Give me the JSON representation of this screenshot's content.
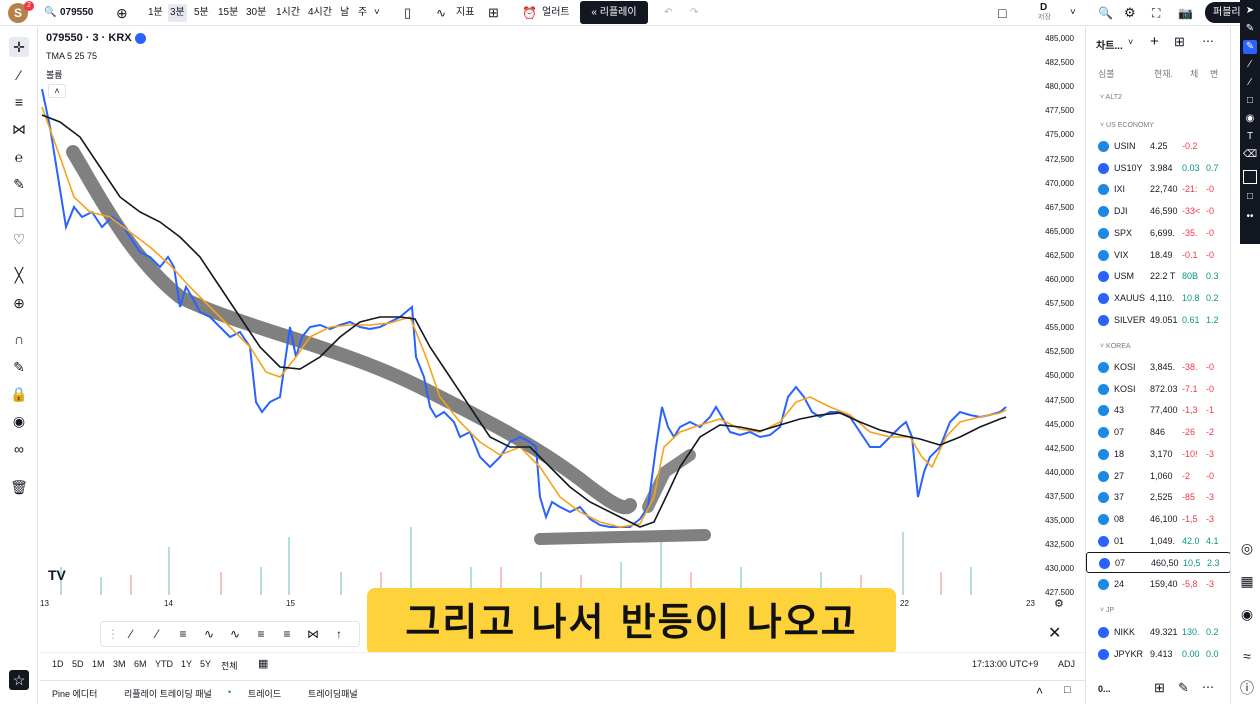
{
  "topbar": {
    "avatar_letter": "S",
    "notif_count": "2",
    "symbol": "079550",
    "intervals": [
      "1분",
      "3분",
      "5분",
      "15분",
      "30분",
      "1시간",
      "4시간",
      "날",
      "주"
    ],
    "active_interval": "3분",
    "indicators_label": "지표",
    "alert_label": "얼러트",
    "replay_label": "리플레이",
    "d_label": "D",
    "d_sub": "저장",
    "publish_label": "퍼블리"
  },
  "legend": {
    "title": "079550 · 3 · KRX",
    "tma": "TMA 5 25 75",
    "volume": "볼륨"
  },
  "price_axis": [
    "485,000",
    "482,500",
    "480,000",
    "477,500",
    "475,000",
    "472,500",
    "470,000",
    "467,500",
    "465,000",
    "462,500",
    "460,000",
    "457,500",
    "455,000",
    "452,500",
    "450,000",
    "447,500",
    "445,000",
    "442,500",
    "440,000",
    "437,500",
    "435,000",
    "432,500",
    "430,000",
    "427,500"
  ],
  "time_axis": [
    "13",
    "14",
    "15",
    "22",
    "23"
  ],
  "subtitle": "그리고 나서 반등이 나오고",
  "ranges": [
    "1D",
    "5D",
    "1M",
    "3M",
    "6M",
    "YTD",
    "1Y",
    "5Y",
    "전체"
  ],
  "clock": "17:13:00 UTC+9",
  "adj": "ADJ",
  "bottom_tabs": [
    "Pine 에디터",
    "리플레이 트레이딩 패널",
    "트레이드",
    "트레이딩패널"
  ],
  "watchlist": {
    "title": "차트...",
    "col_symbol": "심볼",
    "col_last": "현재.",
    "col_chg": "체",
    "col_pct": "변",
    "sections": [
      "ALT2",
      "US ECONOMY",
      "KOREA",
      "JP"
    ],
    "us": [
      {
        "sym": "USIN",
        "last": "4.25",
        "chg": "-0.2",
        "pct": "",
        "color": "#f23645"
      },
      {
        "sym": "US10Y",
        "last": "3.984",
        "chg": "0.03",
        "pct": "0.7",
        "color": "#089981"
      },
      {
        "sym": "IXI",
        "last": "22,740",
        "chg": "-21:",
        "pct": "-0",
        "color": "#f23645"
      },
      {
        "sym": "DJI",
        "last": "46,590",
        "chg": "-33<",
        "pct": "-0",
        "color": "#f23645"
      },
      {
        "sym": "SPX",
        "last": "6,699.",
        "chg": "-35.",
        "pct": "-0",
        "color": "#f23645"
      },
      {
        "sym": "VIX",
        "last": "18.49",
        "chg": "-0.1",
        "pct": "-0",
        "color": "#f23645"
      },
      {
        "sym": "USM",
        "last": "22.2 T",
        "chg": "80B",
        "pct": "0.3",
        "color": "#089981"
      },
      {
        "sym": "XAUUS",
        "last": "4,110.",
        "chg": "10.8",
        "pct": "0.2",
        "color": "#089981"
      },
      {
        "sym": "SILVER",
        "last": "49.051",
        "chg": "0.61",
        "pct": "1.2",
        "color": "#089981"
      }
    ],
    "kr": [
      {
        "sym": "KOSI",
        "last": "3,845.",
        "chg": "-38.",
        "pct": "-0",
        "color": "#f23645"
      },
      {
        "sym": "KOSI",
        "last": "872.03",
        "chg": "-7.1",
        "pct": "-0",
        "color": "#f23645"
      },
      {
        "sym": "43",
        "last": "77,400",
        "chg": "-1,3",
        "pct": "-1",
        "color": "#f23645"
      },
      {
        "sym": "07",
        "last": "846",
        "chg": "-26",
        "pct": "-2",
        "color": "#f23645"
      },
      {
        "sym": "18",
        "last": "3,170",
        "chg": "-10!",
        "pct": "-3",
        "color": "#f23645"
      },
      {
        "sym": "27",
        "last": "1,060",
        "chg": "-2",
        "pct": "-0",
        "color": "#f23645"
      },
      {
        "sym": "37",
        "last": "2,525",
        "chg": "-85",
        "pct": "-3",
        "color": "#f23645"
      },
      {
        "sym": "08",
        "last": "46,100",
        "chg": "-1,5",
        "pct": "-3",
        "color": "#f23645"
      },
      {
        "sym": "01",
        "last": "1,049.",
        "chg": "42.0",
        "pct": "4.1",
        "color": "#089981"
      },
      {
        "sym": "07",
        "last": "460,50",
        "chg": "10,5",
        "pct": "2.3",
        "color": "#089981"
      },
      {
        "sym": "24",
        "last": "159,40",
        "chg": "-5,8",
        "pct": "-3",
        "color": "#f23645"
      }
    ],
    "jp": [
      {
        "sym": "NIKK",
        "last": "49.321",
        "chg": "130.",
        "pct": "0.2",
        "color": "#089981"
      },
      {
        "sym": "JPYKR",
        "last": "9.413",
        "chg": "0.00",
        "pct": "0.0",
        "color": "#089981"
      }
    ],
    "footer_sym": "0..."
  }
}
